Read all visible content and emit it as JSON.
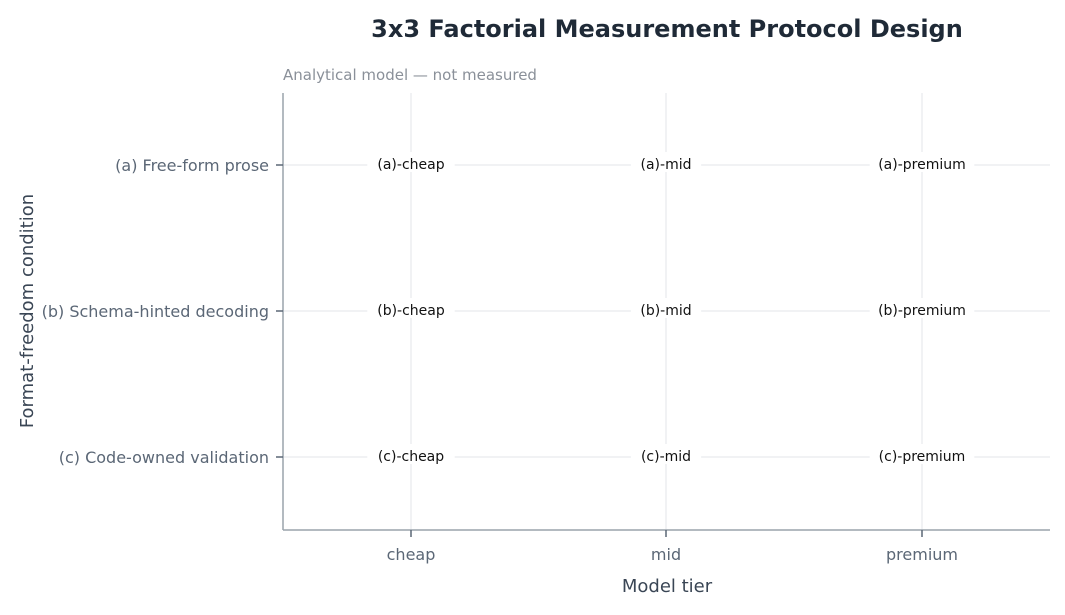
{
  "chart_data": {
    "type": "table",
    "title": "3x3 Factorial Measurement Protocol Design",
    "subtitle": "Analytical model — not measured",
    "xlabel": "Model tier",
    "ylabel": "Format-freedom condition",
    "x_categories": [
      "cheap",
      "mid",
      "premium"
    ],
    "y_categories": [
      "(a) Free-form prose",
      "(b) Schema-hinted decoding",
      "(c) Code-owned validation"
    ],
    "cells": [
      [
        "(a)-cheap",
        "(a)-mid",
        "(a)-premium"
      ],
      [
        "(b)-cheap",
        "(b)-mid",
        "(b)-premium"
      ],
      [
        "(c)-cheap",
        "(c)-mid",
        "(c)-premium"
      ]
    ],
    "grid": true,
    "legend": "none"
  }
}
